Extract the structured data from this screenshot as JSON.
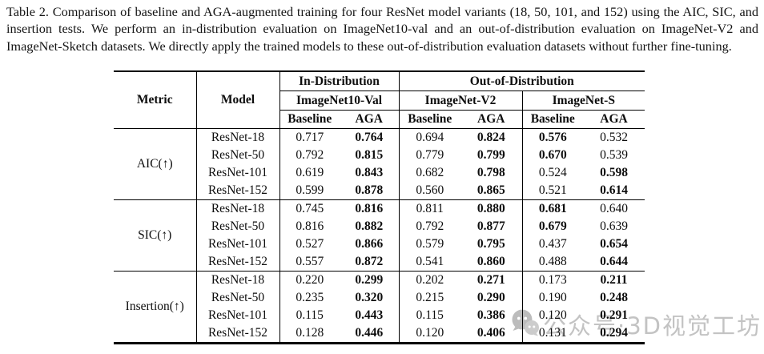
{
  "caption": {
    "text": "Table 2. Comparison of baseline and AGA-augmented training for four ResNet model variants (18, 50, 101, and 152) using the AIC, SIC, and insertion tests. We perform an in-distribution evaluation on ImageNet10-val and an out-of-distribution evaluation on ImageNet-V2 and ImageNet-Sketch datasets. We directly apply the trained models to these out-of-distribution evaluation datasets without further fine-tuning."
  },
  "table": {
    "header": {
      "metric": "Metric",
      "model": "Model",
      "group_in": "In-Distribution",
      "group_out": "Out-of-Distribution",
      "datasets": [
        "ImageNet10-Val",
        "ImageNet-V2",
        "ImageNet-S"
      ],
      "sub": [
        "Baseline",
        "AGA"
      ]
    },
    "blocks": [
      {
        "metric": "AIC(↑)",
        "rows": [
          {
            "model": "ResNet-18",
            "values": [
              "0.717",
              "0.764",
              "0.694",
              "0.824",
              "0.576",
              "0.532"
            ],
            "bold": [
              false,
              true,
              false,
              true,
              true,
              false
            ]
          },
          {
            "model": "ResNet-50",
            "values": [
              "0.792",
              "0.815",
              "0.779",
              "0.799",
              "0.670",
              "0.539"
            ],
            "bold": [
              false,
              true,
              false,
              true,
              true,
              false
            ]
          },
          {
            "model": "ResNet-101",
            "values": [
              "0.619",
              "0.843",
              "0.682",
              "0.798",
              "0.524",
              "0.598"
            ],
            "bold": [
              false,
              true,
              false,
              true,
              false,
              true
            ]
          },
          {
            "model": "ResNet-152",
            "values": [
              "0.599",
              "0.878",
              "0.560",
              "0.865",
              "0.521",
              "0.614"
            ],
            "bold": [
              false,
              true,
              false,
              true,
              false,
              true
            ]
          }
        ]
      },
      {
        "metric": "SIC(↑)",
        "rows": [
          {
            "model": "ResNet-18",
            "values": [
              "0.745",
              "0.816",
              "0.811",
              "0.880",
              "0.681",
              "0.640"
            ],
            "bold": [
              false,
              true,
              false,
              true,
              true,
              false
            ]
          },
          {
            "model": "ResNet-50",
            "values": [
              "0.816",
              "0.882",
              "0.792",
              "0.877",
              "0.679",
              "0.639"
            ],
            "bold": [
              false,
              true,
              false,
              true,
              true,
              false
            ]
          },
          {
            "model": "ResNet-101",
            "values": [
              "0.527",
              "0.866",
              "0.579",
              "0.795",
              "0.437",
              "0.654"
            ],
            "bold": [
              false,
              true,
              false,
              true,
              false,
              true
            ]
          },
          {
            "model": "ResNet-152",
            "values": [
              "0.557",
              "0.872",
              "0.541",
              "0.860",
              "0.488",
              "0.644"
            ],
            "bold": [
              false,
              true,
              false,
              true,
              false,
              true
            ]
          }
        ]
      },
      {
        "metric": "Insertion(↑)",
        "rows": [
          {
            "model": "ResNet-18",
            "values": [
              "0.220",
              "0.299",
              "0.202",
              "0.271",
              "0.173",
              "0.211"
            ],
            "bold": [
              false,
              true,
              false,
              true,
              false,
              true
            ]
          },
          {
            "model": "ResNet-50",
            "values": [
              "0.235",
              "0.320",
              "0.215",
              "0.290",
              "0.190",
              "0.248"
            ],
            "bold": [
              false,
              true,
              false,
              true,
              false,
              true
            ]
          },
          {
            "model": "ResNet-101",
            "values": [
              "0.115",
              "0.443",
              "0.115",
              "0.386",
              "0.120",
              "0.291"
            ],
            "bold": [
              false,
              true,
              false,
              true,
              false,
              true
            ]
          },
          {
            "model": "ResNet-152",
            "values": [
              "0.128",
              "0.446",
              "0.120",
              "0.406",
              "0.131",
              "0.294"
            ],
            "bold": [
              false,
              true,
              false,
              true,
              false,
              true
            ]
          }
        ]
      }
    ]
  },
  "watermark": {
    "icon": "wechat-icon",
    "text": "公众号·3D视觉工坊",
    "color": "#c3c3c3"
  },
  "colors": {
    "background": "#ffffff",
    "text": "#111111",
    "rule": "#000000",
    "watermark_gray": "#c3c3c3"
  }
}
